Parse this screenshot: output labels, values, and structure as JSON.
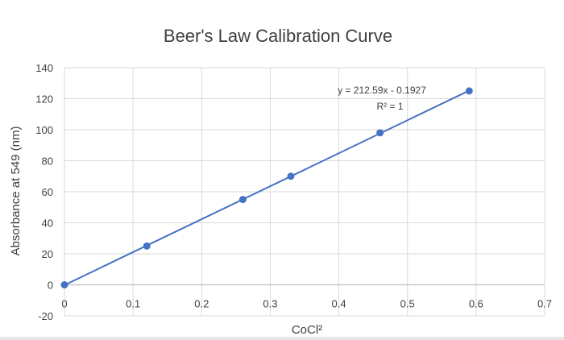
{
  "chart_data": {
    "type": "scatter",
    "title": "Beer's Law Calibration Curve",
    "xlabel": "CoCl²",
    "ylabel": "Absorbance at 549 (nm)",
    "xlim": [
      0,
      0.7
    ],
    "ylim": [
      -20,
      140
    ],
    "x_ticks": [
      "0",
      "0.1",
      "0.2",
      "0.3",
      "0.4",
      "0.5",
      "0.6",
      "0.7"
    ],
    "y_ticks": [
      "-20",
      "0",
      "20",
      "40",
      "60",
      "80",
      "100",
      "120",
      "140"
    ],
    "grid": true,
    "series": [
      {
        "x": [
          0,
          0.12,
          0.26,
          0.33,
          0.46,
          0.59
        ],
        "y": [
          0,
          25,
          55,
          70,
          98,
          125
        ],
        "color": "#4472C4"
      }
    ],
    "trendline": {
      "slope": 212.59,
      "intercept": -0.1927,
      "x_range": [
        0,
        0.59
      ],
      "color": "#4472C4"
    },
    "annotations": {
      "equation": "y = 212.59x - 0.1927",
      "r_squared": "R² = 1"
    }
  }
}
